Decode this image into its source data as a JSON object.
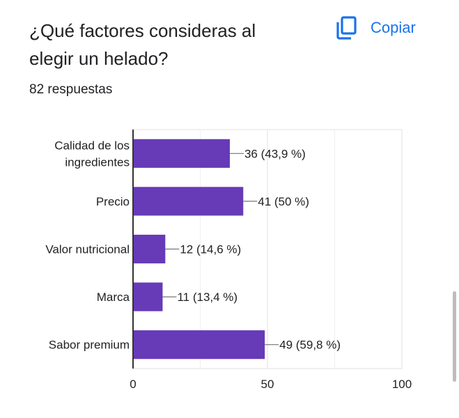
{
  "question": {
    "title_lines": [
      "¿Qué factores consideras al",
      "elegir un helado?"
    ],
    "response_count": "82 respuestas"
  },
  "copy": {
    "label": "Copiar",
    "icon": "copy-icon"
  },
  "colors": {
    "accent": "#1a73e8",
    "bar": "#673ab7",
    "text": "#202124"
  },
  "chart_data": {
    "type": "bar",
    "orientation": "horizontal",
    "categories": [
      [
        "Calidad de los",
        "ingredientes"
      ],
      [
        "Precio"
      ],
      [
        "Valor nutricional"
      ],
      [
        "Marca"
      ],
      [
        "Sabor premium"
      ]
    ],
    "values": [
      36,
      41,
      12,
      11,
      49
    ],
    "data_labels": [
      "36 (43,9 %)",
      "41 (50 %)",
      "12 (14,6 %)",
      "11 (13,4 %)",
      "49 (59,8 %)"
    ],
    "xlim": [
      0,
      100
    ],
    "ticks": [
      0,
      50,
      100
    ],
    "grid": true
  }
}
